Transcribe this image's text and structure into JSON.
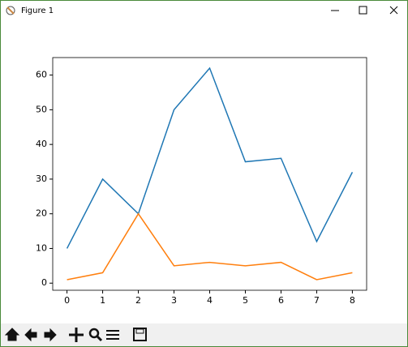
{
  "window": {
    "title": "Figure 1"
  },
  "chart_data": {
    "type": "line",
    "x": [
      0,
      1,
      2,
      3,
      4,
      5,
      6,
      7,
      8
    ],
    "series": [
      {
        "color": "#1f77b4",
        "values": [
          10,
          30,
          20,
          50,
          62,
          35,
          36,
          12,
          32
        ]
      },
      {
        "color": "#ff7f0e",
        "values": [
          1,
          3,
          20,
          5,
          6,
          5,
          6,
          1,
          3
        ]
      }
    ],
    "xlim": [
      -0.4,
      8.4
    ],
    "xticks": [
      0,
      1,
      2,
      3,
      4,
      5,
      6,
      7,
      8
    ],
    "ylim": [
      -2.05,
      65.05
    ],
    "yticks": [
      0,
      10,
      20,
      30,
      40,
      50,
      60
    ]
  }
}
